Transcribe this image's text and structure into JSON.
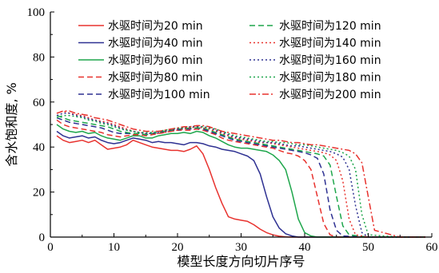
{
  "chart_data": {
    "type": "line",
    "xlabel": "模型长度方向切片序号",
    "ylabel": "含水饱和度, %",
    "xlim": [
      0,
      60
    ],
    "ylim": [
      0,
      100
    ],
    "xticks": [
      0,
      10,
      20,
      30,
      40,
      50,
      60
    ],
    "yticks": [
      0,
      20,
      40,
      60,
      80,
      100
    ],
    "grid": false,
    "legend_placement": "top-right, two columns",
    "series": [
      {
        "name": "水驱时间为20 min",
        "color": "#e8322e",
        "dash": "solid",
        "x": [
          1,
          2,
          3,
          4,
          5,
          6,
          7,
          8,
          9,
          10,
          11,
          12,
          13,
          14,
          15,
          16,
          17,
          18,
          19,
          20,
          21,
          22,
          23,
          24,
          25,
          26,
          27,
          28,
          29,
          30,
          31,
          32,
          33,
          34,
          35,
          36,
          37,
          38,
          39,
          40,
          42,
          45,
          50,
          55,
          59
        ],
        "y": [
          45,
          43,
          42,
          42.5,
          43,
          42,
          43,
          41,
          39,
          39.5,
          40,
          41,
          43,
          42,
          41,
          40,
          39.5,
          39,
          38.5,
          38.5,
          38,
          39,
          40.5,
          37,
          30,
          22,
          15,
          9,
          8,
          7.5,
          7,
          5.5,
          3.5,
          2,
          1,
          0.4,
          0.1,
          0,
          0,
          0,
          0,
          0,
          0,
          0,
          0
        ]
      },
      {
        "name": "水驱时间为40 min",
        "color": "#2e3192",
        "dash": "solid",
        "x": [
          1,
          2,
          3,
          4,
          5,
          6,
          7,
          8,
          9,
          10,
          11,
          12,
          13,
          14,
          15,
          16,
          17,
          18,
          19,
          20,
          21,
          22,
          23,
          24,
          25,
          26,
          27,
          28,
          29,
          30,
          31,
          32,
          33,
          34,
          35,
          36,
          37,
          38,
          39,
          40,
          45,
          50,
          55,
          59
        ],
        "y": [
          47,
          45,
          44,
          44.5,
          45,
          44,
          44.5,
          43,
          42,
          41.5,
          42,
          43,
          44,
          43.5,
          43,
          42,
          42.5,
          42,
          42,
          41.5,
          41,
          42,
          42,
          41.5,
          40.5,
          40,
          39,
          38.5,
          38,
          37,
          36,
          34,
          28,
          18,
          9,
          4,
          1.5,
          0.5,
          0,
          0,
          0,
          0,
          0,
          0
        ]
      },
      {
        "name": "水驱时间为60 min",
        "color": "#1ea64b",
        "dash": "solid",
        "x": [
          1,
          2,
          3,
          4,
          5,
          6,
          7,
          8,
          9,
          10,
          11,
          12,
          13,
          14,
          15,
          16,
          17,
          18,
          19,
          20,
          21,
          22,
          23,
          24,
          25,
          26,
          27,
          28,
          29,
          30,
          31,
          32,
          33,
          34,
          35,
          36,
          37,
          38,
          39,
          40,
          41,
          42,
          45,
          50,
          55,
          59
        ],
        "y": [
          50,
          48,
          47,
          46.5,
          47,
          46,
          46.5,
          45,
          44,
          43.5,
          43,
          44,
          45,
          45,
          44,
          44,
          45,
          45.5,
          46,
          46,
          46.5,
          46,
          47,
          46.5,
          45,
          44,
          42.5,
          41,
          40,
          39.5,
          39.5,
          39,
          38.5,
          38,
          36.5,
          34,
          30,
          20,
          8,
          2,
          0.5,
          0,
          0,
          0,
          0,
          0
        ]
      },
      {
        "name": "水驱时间为80 min",
        "color": "#e8322e",
        "dash": "dashed",
        "x": [
          1,
          2,
          3,
          4,
          5,
          6,
          7,
          8,
          9,
          10,
          11,
          12,
          13,
          14,
          15,
          16,
          17,
          18,
          19,
          20,
          21,
          22,
          23,
          24,
          25,
          26,
          27,
          28,
          29,
          30,
          31,
          32,
          33,
          34,
          35,
          36,
          37,
          38,
          39,
          40,
          41,
          42,
          43,
          44,
          45,
          50,
          55,
          59
        ],
        "y": [
          52,
          50,
          49,
          48.5,
          48,
          47.5,
          47,
          46.5,
          45.5,
          45,
          44.5,
          45,
          45.5,
          45.5,
          45,
          45.5,
          46,
          46.5,
          47,
          47.5,
          47.5,
          47.5,
          48,
          47.5,
          46.5,
          45.5,
          44,
          43,
          42.5,
          42,
          41.5,
          41,
          40.5,
          40,
          39.5,
          38.5,
          37.5,
          37,
          36,
          34,
          30,
          18,
          6,
          1,
          0,
          0,
          0,
          0
        ]
      },
      {
        "name": "水驱时间为100 min",
        "color": "#2e3192",
        "dash": "dashed",
        "x": [
          1,
          2,
          3,
          4,
          5,
          6,
          7,
          8,
          9,
          10,
          11,
          12,
          13,
          14,
          15,
          16,
          17,
          18,
          19,
          20,
          21,
          22,
          23,
          24,
          25,
          26,
          27,
          28,
          29,
          30,
          31,
          32,
          33,
          34,
          35,
          36,
          37,
          38,
          39,
          40,
          41,
          42,
          43,
          44,
          45,
          46,
          50,
          55,
          59
        ],
        "y": [
          53,
          52,
          51,
          50.5,
          50,
          49.5,
          49,
          48.5,
          47.5,
          46.5,
          46,
          46,
          46,
          46,
          45.5,
          46,
          46.5,
          47,
          47.5,
          47.5,
          48,
          48,
          48.5,
          48,
          47,
          46,
          45,
          44,
          43,
          42.5,
          42,
          41.5,
          41,
          40.5,
          40,
          39.5,
          39,
          38.5,
          38,
          37.5,
          36.5,
          35,
          28,
          12,
          3,
          0.5,
          0,
          0,
          0
        ]
      },
      {
        "name": "水驱时间为120 min",
        "color": "#1ea64b",
        "dash": "dashed",
        "x": [
          1,
          2,
          3,
          4,
          5,
          6,
          7,
          8,
          9,
          10,
          11,
          12,
          13,
          14,
          15,
          16,
          17,
          18,
          19,
          20,
          21,
          22,
          23,
          24,
          25,
          26,
          27,
          28,
          29,
          30,
          31,
          32,
          33,
          34,
          35,
          36,
          37,
          38,
          39,
          40,
          41,
          42,
          43,
          44,
          45,
          46,
          47,
          50,
          55,
          59
        ],
        "y": [
          54,
          53,
          52,
          51.5,
          51,
          50.5,
          50,
          49.5,
          49,
          48,
          47,
          46.5,
          46,
          46,
          45.5,
          46,
          46.5,
          47,
          47.5,
          48,
          48,
          48.5,
          48.5,
          48.5,
          47.5,
          46.5,
          45.5,
          44.5,
          43.5,
          43,
          42.5,
          42,
          41.5,
          41,
          40.5,
          40,
          39.5,
          39,
          38.5,
          38,
          37.5,
          37,
          36,
          32,
          18,
          5,
          1,
          0,
          0,
          0
        ]
      },
      {
        "name": "水驱时间为140 min",
        "color": "#e8322e",
        "dash": "dotted",
        "x": [
          1,
          2,
          3,
          4,
          5,
          6,
          7,
          8,
          9,
          10,
          11,
          12,
          13,
          14,
          15,
          16,
          17,
          18,
          19,
          20,
          21,
          22,
          23,
          24,
          25,
          26,
          27,
          28,
          29,
          30,
          31,
          32,
          33,
          34,
          35,
          36,
          37,
          38,
          39,
          40,
          41,
          42,
          43,
          44,
          45,
          46,
          47,
          48,
          50,
          55,
          59
        ],
        "y": [
          55,
          56,
          55,
          54.5,
          54,
          53,
          52,
          51.5,
          51,
          50,
          49,
          48,
          47,
          46.5,
          46,
          46,
          46,
          46.5,
          47,
          47.5,
          48,
          48.5,
          49,
          48.5,
          48,
          47,
          46,
          45,
          44,
          43.5,
          43,
          42.5,
          42,
          42,
          41.5,
          41,
          40.5,
          40,
          39.5,
          39,
          38.5,
          38,
          37.5,
          36.5,
          34,
          25,
          8,
          1,
          0,
          0,
          0
        ]
      },
      {
        "name": "水驱时间为160 min",
        "color": "#2e3192",
        "dash": "dotted",
        "x": [
          1,
          2,
          3,
          4,
          5,
          6,
          7,
          8,
          9,
          10,
          11,
          12,
          13,
          14,
          15,
          16,
          17,
          18,
          19,
          20,
          21,
          22,
          23,
          24,
          25,
          26,
          27,
          28,
          29,
          30,
          31,
          32,
          33,
          34,
          35,
          36,
          37,
          38,
          39,
          40,
          41,
          42,
          43,
          44,
          45,
          46,
          47,
          48,
          49,
          50,
          55,
          59
        ],
        "y": [
          54,
          55,
          55,
          54,
          53.5,
          52.5,
          52,
          51,
          50.5,
          49.5,
          48.5,
          47.5,
          47,
          46.5,
          46,
          46,
          46.5,
          47,
          47.5,
          48,
          48.5,
          49,
          49,
          49,
          48.5,
          47.5,
          46.5,
          45.5,
          44.5,
          44,
          43.5,
          43,
          42.5,
          42,
          42,
          41.5,
          41,
          40.5,
          40.5,
          40,
          39.5,
          39,
          38.5,
          38,
          37,
          35.5,
          30,
          14,
          2,
          0,
          0,
          0
        ]
      },
      {
        "name": "水驱时间为180 min",
        "color": "#1ea64b",
        "dash": "dotted",
        "x": [
          1,
          2,
          3,
          4,
          5,
          6,
          7,
          8,
          9,
          10,
          11,
          12,
          13,
          14,
          15,
          16,
          17,
          18,
          19,
          20,
          21,
          22,
          23,
          24,
          25,
          26,
          27,
          28,
          29,
          30,
          31,
          32,
          33,
          34,
          35,
          36,
          37,
          38,
          39,
          40,
          41,
          42,
          43,
          44,
          45,
          46,
          47,
          48,
          49,
          50,
          55,
          59
        ],
        "y": [
          53,
          54,
          54,
          53.5,
          53,
          52,
          51.5,
          50.5,
          50,
          49,
          48,
          47.5,
          47,
          46.5,
          46.5,
          46.5,
          47,
          47.5,
          48,
          48.5,
          48.5,
          49,
          49.5,
          49,
          48.5,
          48,
          47,
          46,
          45,
          44.5,
          44,
          43.5,
          43,
          42.5,
          42.5,
          42,
          42,
          41.5,
          41,
          41,
          40.5,
          40,
          39.5,
          39,
          38.5,
          37.5,
          36,
          30,
          10,
          1,
          0,
          0
        ]
      },
      {
        "name": "水驱时间为200 min",
        "color": "#e8322e",
        "dash": "dashdot",
        "x": [
          1,
          2,
          3,
          4,
          5,
          6,
          7,
          8,
          9,
          10,
          11,
          12,
          13,
          14,
          15,
          16,
          17,
          18,
          19,
          20,
          21,
          22,
          23,
          24,
          25,
          26,
          27,
          28,
          29,
          30,
          31,
          32,
          33,
          34,
          35,
          36,
          37,
          38,
          39,
          40,
          41,
          42,
          43,
          44,
          45,
          46,
          47,
          48,
          49,
          50,
          51,
          55,
          59
        ],
        "y": [
          55,
          56,
          56,
          55,
          54.5,
          54,
          53,
          52.5,
          52,
          51,
          50,
          49,
          48,
          47.5,
          47,
          47,
          47,
          47.5,
          48,
          48.5,
          49,
          49,
          49.5,
          49.5,
          49,
          48,
          47,
          46.5,
          46,
          45.5,
          45,
          44.5,
          44,
          43.5,
          43,
          43,
          42.5,
          42,
          42,
          41.5,
          41,
          41,
          40.5,
          40,
          39.5,
          39,
          38.5,
          37,
          33,
          18,
          3,
          0,
          0
        ]
      }
    ]
  }
}
